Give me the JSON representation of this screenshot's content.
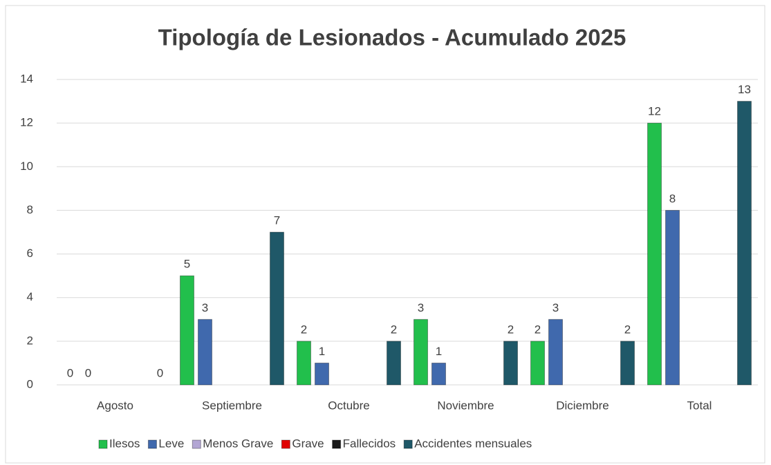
{
  "chart_data": {
    "type": "bar",
    "title": "Tipología de Lesionados - Acumulado 2025",
    "categories": [
      "Agosto",
      "Septiembre",
      "Octubre",
      "Noviembre",
      "Diciembre",
      "Total"
    ],
    "series": [
      {
        "name": "Ilesos",
        "color": "#22bf4c",
        "values": [
          0,
          5,
          2,
          3,
          2,
          12
        ]
      },
      {
        "name": "Leve",
        "color": "#4069ad",
        "values": [
          0,
          3,
          1,
          1,
          3,
          8
        ]
      },
      {
        "name": "Menos Grave",
        "color": "#b3a6d4",
        "values": [
          null,
          null,
          null,
          null,
          null,
          null
        ]
      },
      {
        "name": "Grave",
        "color": "#e00000",
        "values": [
          null,
          null,
          null,
          null,
          null,
          null
        ]
      },
      {
        "name": "Fallecidos",
        "color": "#1a1a1a",
        "values": [
          null,
          null,
          null,
          null,
          null,
          null
        ]
      },
      {
        "name": "Accidentes mensuales",
        "color": "#1f5868",
        "values": [
          0,
          7,
          2,
          2,
          2,
          13
        ]
      }
    ],
    "ylim": [
      0,
      14
    ],
    "yticks": [
      0,
      2,
      4,
      6,
      8,
      10,
      12,
      14
    ],
    "grid": true,
    "legend": "bottom"
  }
}
